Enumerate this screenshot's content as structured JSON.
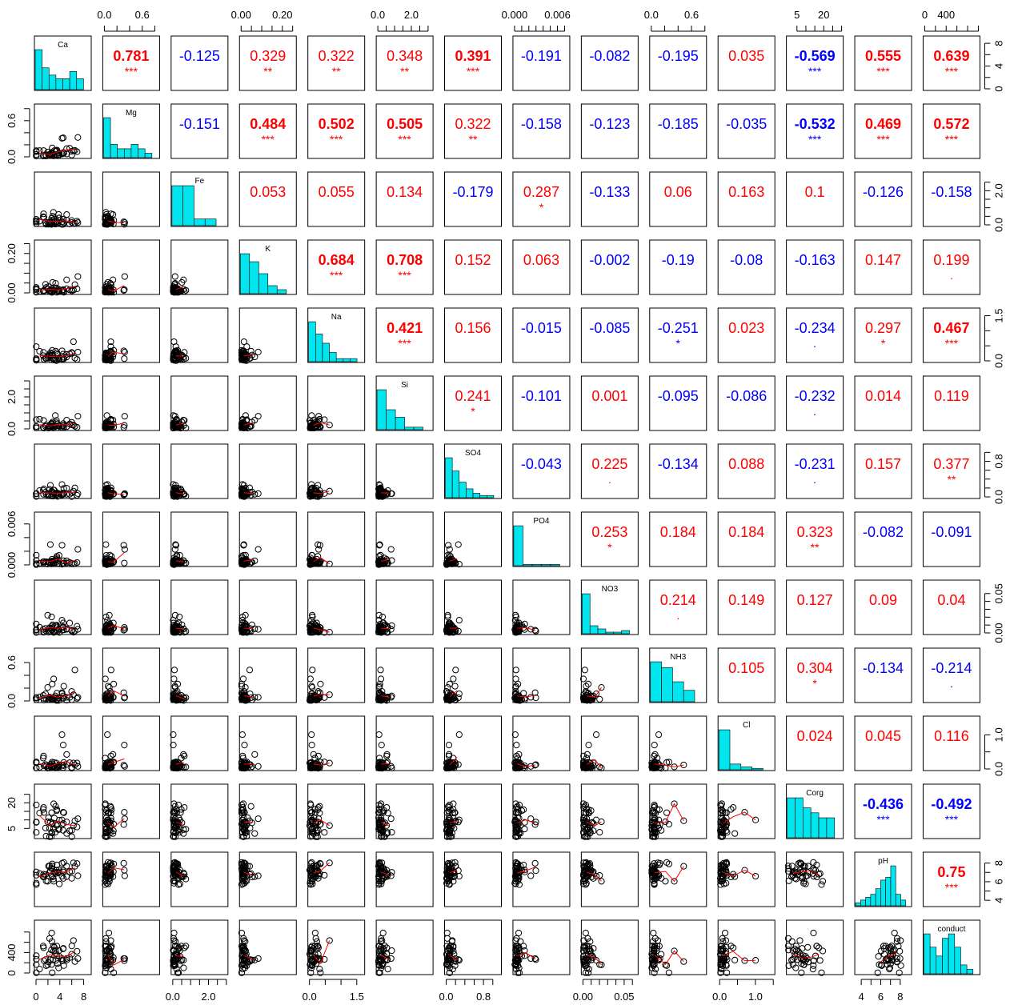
{
  "chart_data": {
    "type": "scatter",
    "title": "",
    "variables": [
      "Ca",
      "Mg",
      "Fe",
      "K",
      "Na",
      "Si",
      "SO4",
      "PO4",
      "NO3",
      "NH3",
      "Cl",
      "Corg",
      "pH",
      "conduct"
    ],
    "ranges": [
      [
        0,
        9
      ],
      [
        0,
        0.85
      ],
      [
        0,
        3.0
      ],
      [
        0,
        0.26
      ],
      [
        0,
        1.7
      ],
      [
        0,
        3.2
      ],
      [
        0,
        1.15
      ],
      [
        0,
        0.0075
      ],
      [
        0,
        0.065
      ],
      [
        0,
        0.8
      ],
      [
        0,
        1.5
      ],
      [
        0,
        30
      ],
      [
        3.5,
        9
      ],
      [
        0,
        1000
      ]
    ],
    "axis_ticks": {
      "top": {
        "1": {
          "labels": [
            "0.0",
            "0.6"
          ],
          "values": [
            0,
            0.6
          ],
          "minor": [
            0,
            0.2,
            0.4,
            0.6,
            0.8
          ]
        },
        "3": {
          "labels": [
            "0.00",
            "0.20"
          ],
          "values": [
            0,
            0.2
          ],
          "minor": [
            0,
            0.05,
            0.1,
            0.15,
            0.2,
            0.25
          ]
        },
        "5": {
          "labels": [
            "0.0",
            "2.0"
          ],
          "values": [
            0,
            2.0
          ],
          "minor": [
            0,
            0.5,
            1,
            1.5,
            2,
            2.5,
            3
          ]
        },
        "7": {
          "labels": [
            "0.000",
            "0.006"
          ],
          "values": [
            0,
            0.006
          ],
          "minor": [
            0,
            0.001,
            0.002,
            0.003,
            0.004,
            0.005,
            0.006,
            0.007
          ]
        },
        "9": {
          "labels": [
            "0.0",
            "0.6"
          ],
          "values": [
            0,
            0.6
          ],
          "minor": [
            0,
            0.2,
            0.4,
            0.6,
            0.8
          ]
        },
        "11": {
          "labels": [
            "5",
            "20"
          ],
          "values": [
            5,
            20
          ],
          "minor": [
            5,
            10,
            15,
            20,
            25,
            30
          ]
        },
        "13": {
          "labels": [
            "0",
            "400"
          ],
          "values": [
            0,
            400
          ],
          "minor": [
            0,
            200,
            400,
            600,
            800,
            1000
          ]
        }
      },
      "bottom": {
        "0": {
          "labels": [
            "0",
            "4",
            "8"
          ],
          "values": [
            0,
            4,
            8
          ],
          "minor": [
            0,
            2,
            4,
            6,
            8
          ]
        },
        "2": {
          "labels": [
            "0.0",
            "2.0"
          ],
          "values": [
            0,
            2.0
          ],
          "minor": [
            0,
            0.5,
            1,
            1.5,
            2,
            2.5,
            3
          ]
        },
        "4": {
          "labels": [
            "0.0",
            "1.5"
          ],
          "values": [
            0,
            1.5
          ],
          "minor": [
            0,
            0.5,
            1,
            1.5
          ]
        },
        "6": {
          "labels": [
            "0.0",
            "0.8"
          ],
          "values": [
            0,
            0.8
          ],
          "minor": [
            0,
            0.2,
            0.4,
            0.6,
            0.8,
            1.0
          ]
        },
        "8": {
          "labels": [
            "0.00",
            "0.05"
          ],
          "values": [
            0,
            0.05
          ],
          "minor": [
            0,
            0.01,
            0.02,
            0.03,
            0.04,
            0.05,
            0.06
          ]
        },
        "10": {
          "labels": [
            "0.0",
            "1.0"
          ],
          "values": [
            0,
            1.0
          ],
          "minor": [
            0,
            0.5,
            1,
            1.5
          ]
        },
        "12": {
          "labels": [
            "4",
            "6",
            "8"
          ],
          "values": [
            4,
            6,
            8
          ],
          "minor": [
            4,
            5,
            6,
            7,
            8
          ]
        }
      },
      "left": {
        "1": {
          "labels": [
            "0.0",
            "0.6"
          ],
          "values": [
            0,
            0.6
          ],
          "minor": [
            0,
            0.2,
            0.4,
            0.6,
            0.8
          ]
        },
        "3": {
          "labels": [
            "0.00",
            "0.20"
          ],
          "values": [
            0,
            0.2
          ],
          "minor": [
            0,
            0.05,
            0.1,
            0.15,
            0.2,
            0.25
          ]
        },
        "5": {
          "labels": [
            "0.0",
            "2.0"
          ],
          "values": [
            0,
            2.0
          ],
          "minor": [
            0,
            0.5,
            1,
            1.5,
            2,
            2.5,
            3
          ]
        },
        "7": {
          "labels": [
            "0.000",
            "0.006"
          ],
          "values": [
            0,
            0.006
          ],
          "minor": [
            0,
            0.002,
            0.004,
            0.006
          ]
        },
        "9": {
          "labels": [
            "0.0",
            "0.6"
          ],
          "values": [
            0,
            0.6
          ],
          "minor": [
            0,
            0.2,
            0.4,
            0.6
          ]
        },
        "11": {
          "labels": [
            "5",
            "20"
          ],
          "values": [
            5,
            20
          ],
          "minor": [
            5,
            10,
            15,
            20,
            25
          ]
        },
        "13": {
          "labels": [
            "0",
            "400"
          ],
          "values": [
            0,
            400
          ],
          "minor": [
            0,
            200,
            400,
            600,
            800
          ]
        }
      },
      "right": {
        "0": {
          "labels": [
            "0",
            "4",
            "8"
          ],
          "values": [
            0,
            4,
            8
          ],
          "minor": [
            0,
            2,
            4,
            6,
            8
          ]
        },
        "2": {
          "labels": [
            "0.0",
            "2.0"
          ],
          "values": [
            0,
            2.0
          ],
          "minor": [
            0,
            0.5,
            1,
            1.5,
            2,
            2.5
          ]
        },
        "4": {
          "labels": [
            "0.0",
            "1.5"
          ],
          "values": [
            0,
            1.5
          ],
          "minor": [
            0,
            0.5,
            1,
            1.5
          ]
        },
        "6": {
          "labels": [
            "0.0",
            "0.8"
          ],
          "values": [
            0,
            0.8
          ],
          "minor": [
            0,
            0.2,
            0.4,
            0.6,
            0.8,
            1.0
          ]
        },
        "8": {
          "labels": [
            "0.00",
            "0.05"
          ],
          "values": [
            0,
            0.05
          ],
          "minor": [
            0,
            0.01,
            0.02,
            0.03,
            0.04,
            0.05
          ]
        },
        "10": {
          "labels": [
            "0.0",
            "1.0"
          ],
          "values": [
            0,
            1.0
          ],
          "minor": [
            0,
            0.5,
            1
          ]
        },
        "12": {
          "labels": [
            "4",
            "6",
            "8"
          ],
          "values": [
            4,
            6,
            8
          ],
          "minor": [
            4,
            5,
            6,
            7,
            8
          ]
        }
      }
    },
    "correlations": [
      [
        null,
        0.781,
        -0.125,
        0.329,
        0.322,
        0.348,
        0.391,
        -0.191,
        -0.082,
        -0.195,
        0.035,
        -0.569,
        0.555,
        0.639
      ],
      [
        null,
        null,
        -0.151,
        0.484,
        0.502,
        0.505,
        0.322,
        -0.158,
        -0.123,
        -0.185,
        -0.035,
        -0.532,
        0.469,
        0.572
      ],
      [
        null,
        null,
        null,
        0.053,
        0.055,
        0.134,
        -0.179,
        0.287,
        -0.133,
        0.06,
        0.163,
        0.1,
        -0.126,
        -0.158
      ],
      [
        null,
        null,
        null,
        null,
        0.684,
        0.708,
        0.152,
        0.063,
        -0.002,
        -0.19,
        -0.08,
        -0.163,
        0.147,
        0.199
      ],
      [
        null,
        null,
        null,
        null,
        null,
        0.421,
        0.156,
        -0.015,
        -0.085,
        -0.251,
        0.023,
        -0.234,
        0.297,
        0.467
      ],
      [
        null,
        null,
        null,
        null,
        null,
        null,
        0.241,
        -0.101,
        0.001,
        -0.095,
        -0.086,
        -0.232,
        0.014,
        0.119
      ],
      [
        null,
        null,
        null,
        null,
        null,
        null,
        null,
        -0.043,
        0.225,
        -0.134,
        0.088,
        -0.231,
        0.157,
        0.377
      ],
      [
        null,
        null,
        null,
        null,
        null,
        null,
        null,
        null,
        0.253,
        0.184,
        0.184,
        0.323,
        -0.082,
        -0.091
      ],
      [
        null,
        null,
        null,
        null,
        null,
        null,
        null,
        null,
        null,
        0.214,
        0.149,
        0.127,
        0.09,
        0.04
      ],
      [
        null,
        null,
        null,
        null,
        null,
        null,
        null,
        null,
        null,
        null,
        0.105,
        0.304,
        -0.134,
        -0.214
      ],
      [
        null,
        null,
        null,
        null,
        null,
        null,
        null,
        null,
        null,
        null,
        null,
        0.024,
        0.045,
        0.116
      ],
      [
        null,
        null,
        null,
        null,
        null,
        null,
        null,
        null,
        null,
        null,
        null,
        null,
        -0.436,
        -0.492
      ],
      [
        null,
        null,
        null,
        null,
        null,
        null,
        null,
        null,
        null,
        null,
        null,
        null,
        null,
        0.75
      ],
      [
        null,
        null,
        null,
        null,
        null,
        null,
        null,
        null,
        null,
        null,
        null,
        null,
        null,
        null
      ]
    ],
    "significance": [
      [
        null,
        "***",
        "",
        "**",
        "**",
        "**",
        "***",
        "",
        "",
        "",
        "",
        "***",
        "***",
        "***"
      ],
      [
        null,
        null,
        "",
        "***",
        "***",
        "***",
        "**",
        "",
        "",
        "",
        "",
        "***",
        "***",
        "***"
      ],
      [
        null,
        null,
        null,
        "",
        "",
        "",
        "",
        "*",
        "",
        "",
        "",
        "",
        "",
        ""
      ],
      [
        null,
        null,
        null,
        null,
        "***",
        "***",
        "",
        "",
        "",
        "",
        "",
        "",
        "",
        "."
      ],
      [
        null,
        null,
        null,
        null,
        null,
        "***",
        "",
        "",
        "",
        "*",
        "",
        ".",
        "*",
        "***"
      ],
      [
        null,
        null,
        null,
        null,
        null,
        null,
        "*",
        "",
        "",
        "",
        "",
        ".",
        "",
        ""
      ],
      [
        null,
        null,
        null,
        null,
        null,
        null,
        null,
        "",
        ".",
        "",
        "",
        ".",
        "",
        "**"
      ],
      [
        null,
        null,
        null,
        null,
        null,
        null,
        null,
        null,
        "*",
        "",
        "",
        "**",
        "",
        ""
      ],
      [
        null,
        null,
        null,
        null,
        null,
        null,
        null,
        null,
        null,
        ".",
        "",
        "",
        "",
        ""
      ],
      [
        null,
        null,
        null,
        null,
        null,
        null,
        null,
        null,
        null,
        null,
        "",
        "*",
        "",
        "."
      ],
      [
        null,
        null,
        null,
        null,
        null,
        null,
        null,
        null,
        null,
        null,
        null,
        "",
        "",
        ""
      ],
      [
        null,
        null,
        null,
        null,
        null,
        null,
        null,
        null,
        null,
        null,
        null,
        null,
        "***",
        "***"
      ],
      [
        null,
        null,
        null,
        null,
        null,
        null,
        null,
        null,
        null,
        null,
        null,
        null,
        null,
        "***"
      ],
      [
        null,
        null,
        null,
        null,
        null,
        null,
        null,
        null,
        null,
        null,
        null,
        null,
        null,
        null
      ]
    ],
    "histograms": [
      [
        11,
        6,
        4,
        3,
        3,
        5,
        3
      ],
      [
        9,
        3,
        2,
        2,
        3,
        2,
        1
      ],
      [
        6,
        6,
        1,
        1
      ],
      [
        10,
        8,
        5,
        2,
        1
      ],
      [
        13,
        9,
        6,
        3,
        1,
        1,
        1
      ],
      [
        16,
        8,
        5,
        1,
        1
      ],
      [
        18,
        12,
        7,
        4,
        2,
        1,
        1
      ],
      [
        30,
        1,
        1,
        1,
        1
      ],
      [
        25,
        5,
        3,
        1,
        1,
        2
      ],
      [
        14,
        12,
        7,
        4
      ],
      [
        28,
        4,
        2,
        1
      ],
      [
        8,
        8,
        6,
        5,
        4,
        4
      ],
      [
        1,
        2,
        3,
        4,
        6,
        9,
        10,
        14,
        4,
        2
      ],
      [
        9,
        6,
        4,
        8,
        9,
        6,
        2,
        1
      ]
    ],
    "colors": {
      "positive": "#ff0000",
      "negative": "#0000ff",
      "histogram": "#00e5ee",
      "smooth": "#ff0000",
      "point": "#000000"
    }
  }
}
